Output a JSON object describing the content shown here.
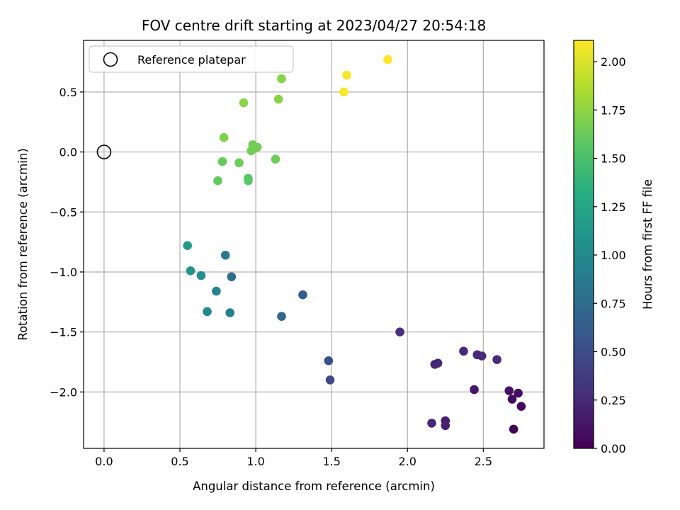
{
  "chart_data": {
    "type": "scatter",
    "title": "FOV centre drift starting at 2023/04/27 20:54:18",
    "xlabel": "Angular distance from reference (arcmin)",
    "ylabel": "Rotation from reference (arcmin)",
    "xlim": [
      -0.135,
      2.9
    ],
    "ylim": [
      -2.47,
      0.93
    ],
    "xticks": [
      0.0,
      0.5,
      1.0,
      1.5,
      2.0,
      2.5
    ],
    "xtick_labels": [
      "0.0",
      "0.5",
      "1.0",
      "1.5",
      "2.0",
      "2.5"
    ],
    "yticks": [
      -2.0,
      -1.5,
      -1.0,
      -0.5,
      0.0,
      0.5
    ],
    "ytick_labels": [
      "−2.0",
      "−1.5",
      "−1.0",
      "−0.5",
      "0.0",
      "0.5"
    ],
    "grid": true,
    "legend": {
      "placement": "upper left",
      "entries": [
        {
          "label": "Reference platepar",
          "marker": "open-circle"
        }
      ]
    },
    "reference_point": {
      "x": 0.0,
      "y": 0.0
    },
    "colorbar": {
      "label": "Hours from first FF file",
      "colormap": "viridis",
      "range": [
        0.0,
        2.11
      ],
      "ticks": [
        0.0,
        0.25,
        0.5,
        0.75,
        1.0,
        1.25,
        1.5,
        1.75,
        2.0
      ],
      "tick_labels": [
        "0.00",
        "0.25",
        "0.50",
        "0.75",
        "1.00",
        "1.25",
        "1.50",
        "1.75",
        "2.00"
      ]
    },
    "points": [
      {
        "x": 2.7,
        "y": -2.31,
        "c": 0.0
      },
      {
        "x": 2.75,
        "y": -2.12,
        "c": 0.04
      },
      {
        "x": 2.69,
        "y": -2.06,
        "c": 0.06
      },
      {
        "x": 2.73,
        "y": -2.01,
        "c": 0.08
      },
      {
        "x": 2.67,
        "y": -1.99,
        "c": 0.1
      },
      {
        "x": 2.44,
        "y": -1.98,
        "c": 0.14
      },
      {
        "x": 2.25,
        "y": -2.24,
        "c": 0.18
      },
      {
        "x": 2.25,
        "y": -2.28,
        "c": 0.2
      },
      {
        "x": 2.16,
        "y": -2.26,
        "c": 0.22
      },
      {
        "x": 2.18,
        "y": -1.77,
        "c": 0.23
      },
      {
        "x": 2.2,
        "y": -1.76,
        "c": 0.24
      },
      {
        "x": 2.37,
        "y": -1.66,
        "c": 0.24
      },
      {
        "x": 2.46,
        "y": -1.69,
        "c": 0.25
      },
      {
        "x": 2.49,
        "y": -1.7,
        "c": 0.26
      },
      {
        "x": 2.59,
        "y": -1.73,
        "c": 0.26
      },
      {
        "x": 1.95,
        "y": -1.5,
        "c": 0.3
      },
      {
        "x": 1.49,
        "y": -1.9,
        "c": 0.48
      },
      {
        "x": 1.48,
        "y": -1.74,
        "c": 0.52
      },
      {
        "x": 1.31,
        "y": -1.19,
        "c": 0.62
      },
      {
        "x": 1.17,
        "y": -1.37,
        "c": 0.72
      },
      {
        "x": 0.84,
        "y": -1.04,
        "c": 0.78
      },
      {
        "x": 0.8,
        "y": -0.86,
        "c": 0.84
      },
      {
        "x": 0.83,
        "y": -1.34,
        "c": 0.9
      },
      {
        "x": 0.74,
        "y": -1.16,
        "c": 0.94
      },
      {
        "x": 0.68,
        "y": -1.33,
        "c": 0.98
      },
      {
        "x": 0.64,
        "y": -1.03,
        "c": 1.04
      },
      {
        "x": 0.57,
        "y": -0.99,
        "c": 1.1
      },
      {
        "x": 0.55,
        "y": -0.78,
        "c": 1.15
      },
      {
        "x": 0.95,
        "y": -0.22,
        "c": 1.55
      },
      {
        "x": 0.95,
        "y": -0.24,
        "c": 1.57
      },
      {
        "x": 0.75,
        "y": -0.24,
        "c": 1.6
      },
      {
        "x": 0.78,
        "y": -0.08,
        "c": 1.62
      },
      {
        "x": 0.89,
        "y": -0.09,
        "c": 1.63
      },
      {
        "x": 0.98,
        "y": 0.06,
        "c": 1.65
      },
      {
        "x": 0.97,
        "y": 0.01,
        "c": 1.66
      },
      {
        "x": 1.01,
        "y": 0.04,
        "c": 1.66
      },
      {
        "x": 1.13,
        "y": -0.06,
        "c": 1.64
      },
      {
        "x": 0.79,
        "y": 0.12,
        "c": 1.7
      },
      {
        "x": 0.92,
        "y": 0.41,
        "c": 1.74
      },
      {
        "x": 1.15,
        "y": 0.44,
        "c": 1.73
      },
      {
        "x": 1.17,
        "y": 0.61,
        "c": 1.73
      },
      {
        "x": 1.58,
        "y": 0.5,
        "c": 2.1
      },
      {
        "x": 1.6,
        "y": 0.64,
        "c": 2.08
      },
      {
        "x": 1.87,
        "y": 0.77,
        "c": 2.11
      }
    ]
  }
}
